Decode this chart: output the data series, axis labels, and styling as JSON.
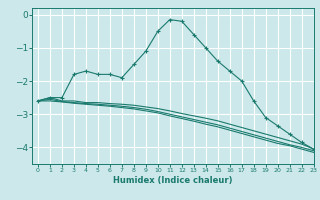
{
  "xlabel": "Humidex (Indice chaleur)",
  "ylabel": "",
  "background_color": "#cce8ea",
  "grid_color": "#ffffff",
  "line_color": "#1a7a6e",
  "xlim": [
    -0.5,
    23
  ],
  "ylim": [
    -4.5,
    0.2
  ],
  "yticks": [
    0,
    -1,
    -2,
    -3,
    -4
  ],
  "xticks": [
    0,
    1,
    2,
    3,
    4,
    5,
    6,
    7,
    8,
    9,
    10,
    11,
    12,
    13,
    14,
    15,
    16,
    17,
    18,
    19,
    20,
    21,
    22,
    23
  ],
  "series": [
    {
      "x": [
        0,
        1,
        2,
        3,
        4,
        5,
        6,
        7,
        8,
        9,
        10,
        11,
        12,
        13,
        14,
        15,
        16,
        17,
        18,
        19,
        20,
        21,
        22,
        23
      ],
      "y": [
        -2.6,
        -2.5,
        -2.5,
        -1.8,
        -1.7,
        -1.8,
        -1.8,
        -1.9,
        -1.5,
        -1.1,
        -0.5,
        -0.15,
        -0.2,
        -0.6,
        -1.0,
        -1.4,
        -1.7,
        -2.0,
        -2.6,
        -3.1,
        -3.35,
        -3.6,
        -3.85,
        -4.05
      ],
      "marker": "+"
    },
    {
      "x": [
        0,
        1,
        2,
        3,
        4,
        5,
        6,
        7,
        8,
        9,
        10,
        11,
        12,
        13,
        14,
        15,
        16,
        17,
        18,
        19,
        20,
        21,
        22,
        23
      ],
      "y": [
        -2.6,
        -2.5,
        -2.6,
        -2.6,
        -2.65,
        -2.65,
        -2.68,
        -2.7,
        -2.73,
        -2.78,
        -2.83,
        -2.9,
        -2.98,
        -3.05,
        -3.12,
        -3.2,
        -3.3,
        -3.4,
        -3.5,
        -3.6,
        -3.7,
        -3.8,
        -3.9,
        -4.05
      ],
      "marker": null
    },
    {
      "x": [
        0,
        1,
        2,
        3,
        4,
        5,
        6,
        7,
        8,
        9,
        10,
        11,
        12,
        13,
        14,
        15,
        16,
        17,
        18,
        19,
        20,
        21,
        22,
        23
      ],
      "y": [
        -2.6,
        -2.55,
        -2.62,
        -2.65,
        -2.68,
        -2.7,
        -2.73,
        -2.76,
        -2.8,
        -2.85,
        -2.92,
        -3.0,
        -3.08,
        -3.16,
        -3.24,
        -3.32,
        -3.42,
        -3.52,
        -3.62,
        -3.72,
        -3.82,
        -3.92,
        -4.0,
        -4.1
      ],
      "marker": null
    },
    {
      "x": [
        0,
        1,
        2,
        3,
        4,
        5,
        6,
        7,
        8,
        9,
        10,
        11,
        12,
        13,
        14,
        15,
        16,
        17,
        18,
        19,
        20,
        21,
        22,
        23
      ],
      "y": [
        -2.6,
        -2.6,
        -2.63,
        -2.67,
        -2.7,
        -2.73,
        -2.76,
        -2.8,
        -2.84,
        -2.9,
        -2.96,
        -3.05,
        -3.13,
        -3.21,
        -3.3,
        -3.38,
        -3.48,
        -3.58,
        -3.68,
        -3.78,
        -3.88,
        -3.95,
        -4.05,
        -4.15
      ],
      "marker": null
    }
  ]
}
